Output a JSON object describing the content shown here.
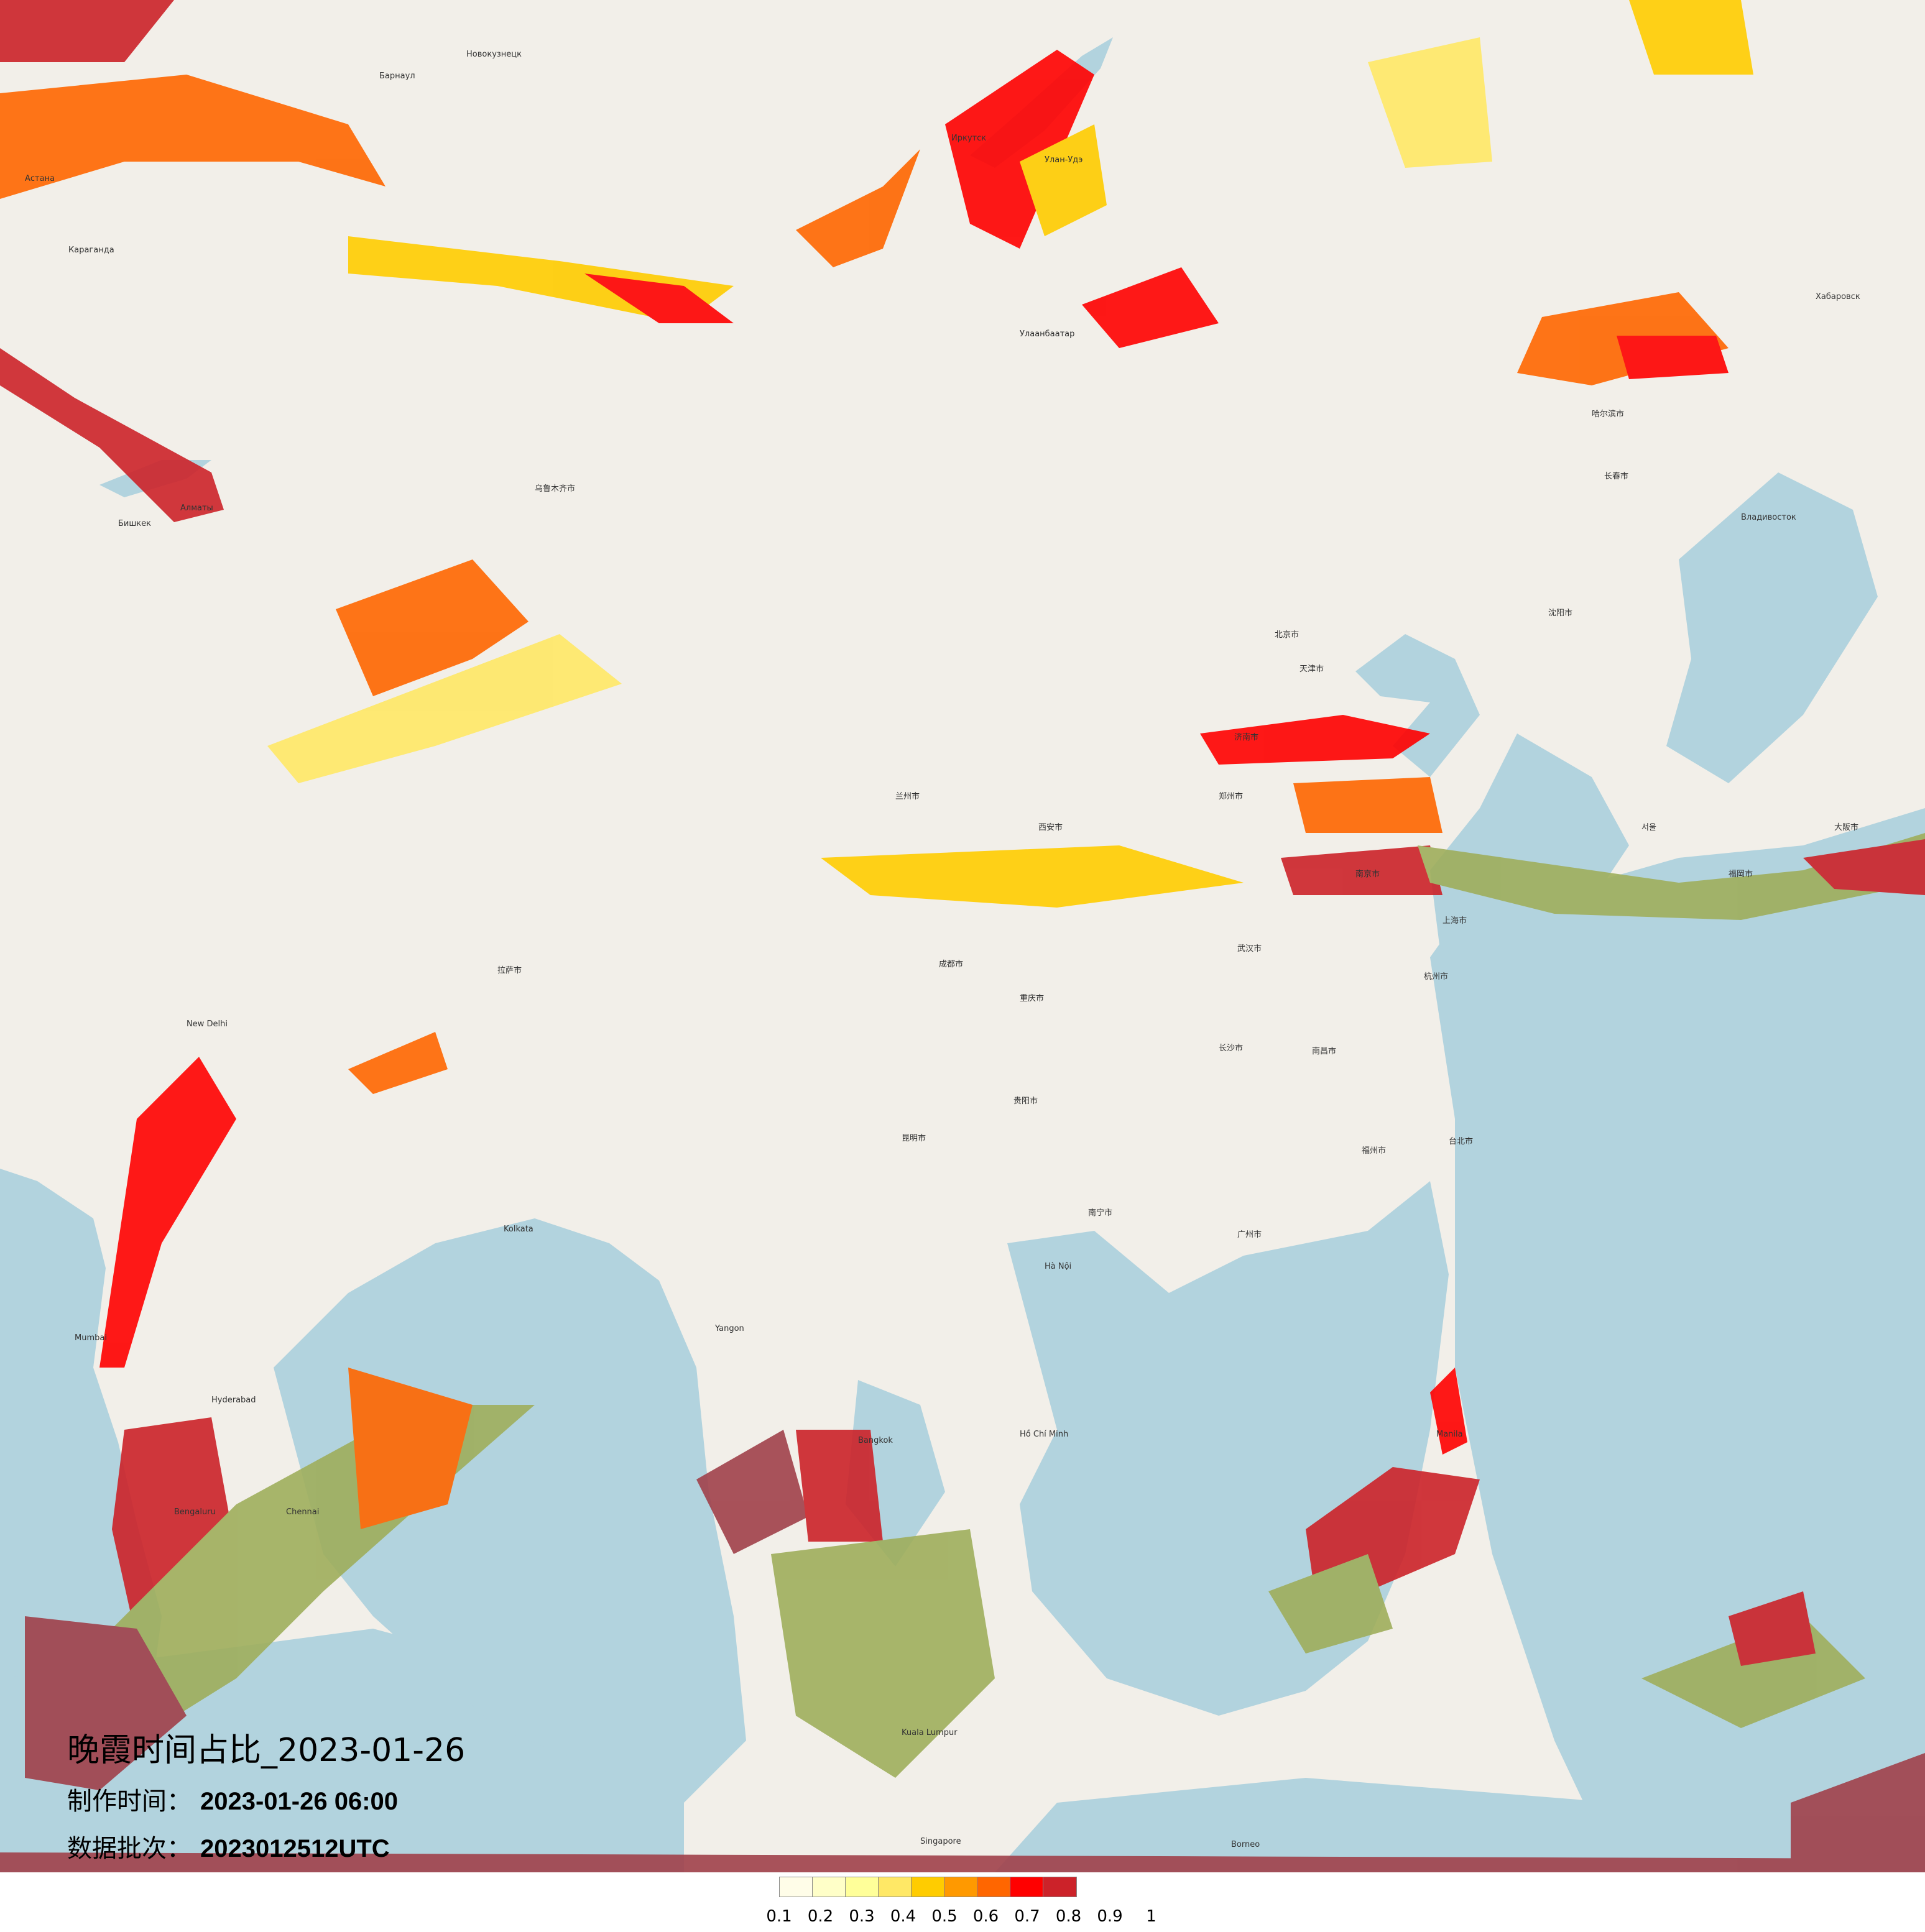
{
  "map": {
    "title": "晚霞时间占比_2023-01-26",
    "made_time_label": "制作时间：",
    "made_time_value": "2023-01-26 06:00",
    "batch_label": "数据批次：",
    "batch_value": "2023012512UTC",
    "basemap_colors": {
      "land": "#f2efe9",
      "water": "#b2d3de"
    },
    "places": [
      "Новокузнецк",
      "Барнаул",
      "Астана",
      "Караганда",
      "Алматы",
      "Бишкек",
      "Иркутск",
      "Улан-Удэ",
      "Улаанбаатар",
      "Хабаровск",
      "Владивосток",
      "乌鲁木齐市",
      "哈尔滨市",
      "长春市",
      "沈阳市",
      "北京市",
      "天津市",
      "济南市",
      "郑州市",
      "西安市",
      "兰州市",
      "成都市",
      "重庆市",
      "武汉市",
      "南京市",
      "上海市",
      "杭州市",
      "长沙市",
      "南昌市",
      "福州市",
      "广州市",
      "南宁市",
      "昆明市",
      "贵阳市",
      "拉萨市",
      "台北市",
      "Hà Nội",
      "Kolkata",
      "New Delhi",
      "Mumbai",
      "Bengaluru",
      "Chennai",
      "Hyderabad",
      "Yangon",
      "Bangkok",
      "Hồ Chí Minh",
      "Manila",
      "Kuala Lumpur",
      "Singapore",
      "서울",
      "大阪市",
      "福岡市",
      "Borneo"
    ]
  },
  "legend": {
    "colors": [
      "#fffde8",
      "#ffffc8",
      "#ffff99",
      "#ffe866",
      "#ffcc00",
      "#ff9900",
      "#ff6600",
      "#ff0000",
      "#cc2229"
    ],
    "labels": [
      "0.1",
      "0.2",
      "0.3",
      "0.4",
      "0.5",
      "0.6",
      "0.7",
      "0.8",
      "0.9",
      "1"
    ]
  }
}
